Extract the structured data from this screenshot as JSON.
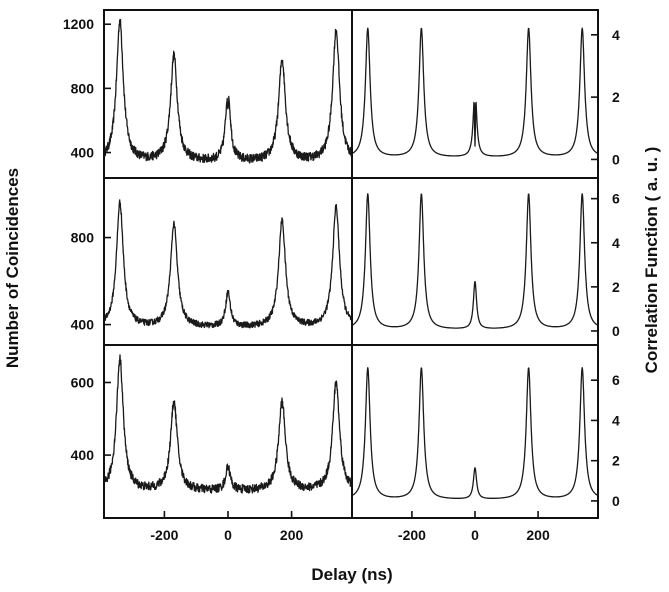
{
  "chart_data": {
    "type": "line",
    "xlabel": "Delay (ns)",
    "ylabel_left": "Number of Coincidences",
    "ylabel_right": "Correlation Function ( a. u. )",
    "x_range": [
      -390,
      390
    ],
    "x_ticks": [
      -200,
      0,
      200
    ],
    "peak_positions_ns": [
      -340,
      -170,
      0,
      170,
      340
    ],
    "rows": [
      {
        "left": {
          "ylim": [
            260,
            1270
          ],
          "ticks": [
            400,
            800,
            1200
          ],
          "peaks": [
            1220,
            1000,
            790,
            975,
            1160
          ],
          "dip_at_zero": 640,
          "baseline": 340,
          "noise": 28
        },
        "right": {
          "ylim": [
            -0.5,
            4.7
          ],
          "ticks": [
            0,
            2,
            4
          ],
          "peaks": [
            4.2,
            4.2,
            2.4,
            4.2,
            4.2
          ],
          "dip_at_zero": 0.4,
          "baseline": 0.05
        }
      },
      {
        "left": {
          "ylim": [
            320,
            1060
          ],
          "ticks": [
            400,
            800
          ],
          "peaks": [
            960,
            860,
            545,
            875,
            940
          ],
          "baseline": 385,
          "noise": 14
        },
        "right": {
          "ylim": [
            -0.5,
            6.8
          ],
          "ticks": [
            0,
            2,
            4,
            6
          ],
          "peaks": [
            6.2,
            6.2,
            2.2,
            6.2,
            6.2
          ],
          "baseline": 0.05
        }
      },
      {
        "left": {
          "ylim": [
            235,
            695
          ],
          "ticks": [
            400,
            600
          ],
          "peaks": [
            665,
            545,
            365,
            545,
            600
          ],
          "baseline": 300,
          "noise": 12
        },
        "right": {
          "ylim": [
            -0.7,
            7.6
          ],
          "ticks": [
            0,
            2,
            4,
            6
          ],
          "peaks": [
            6.6,
            6.6,
            1.6,
            6.6,
            6.6
          ],
          "baseline": 0.05
        }
      }
    ]
  }
}
